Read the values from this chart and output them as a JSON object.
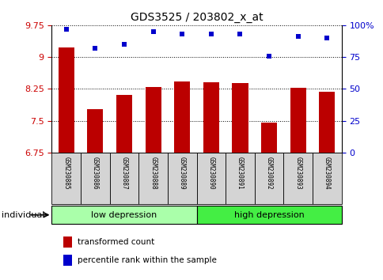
{
  "title": "GDS3525 / 203802_x_at",
  "samples": [
    "GSM230885",
    "GSM230886",
    "GSM230887",
    "GSM230888",
    "GSM230889",
    "GSM230890",
    "GSM230891",
    "GSM230892",
    "GSM230893",
    "GSM230894"
  ],
  "transformed_count": [
    9.22,
    7.78,
    8.1,
    8.3,
    8.42,
    8.4,
    8.38,
    7.46,
    8.27,
    8.18
  ],
  "percentile_rank": [
    97,
    82,
    85,
    95,
    93,
    93,
    93,
    76,
    91,
    90
  ],
  "ylim_left": [
    6.75,
    9.75
  ],
  "ylim_right": [
    0,
    100
  ],
  "yticks_left": [
    6.75,
    7.5,
    8.25,
    9.0,
    9.75
  ],
  "yticks_right": [
    0,
    25,
    50,
    75,
    100
  ],
  "ytick_labels_left": [
    "6.75",
    "7.5",
    "8.25",
    "9",
    "9.75"
  ],
  "ytick_labels_right": [
    "0",
    "25",
    "50",
    "75",
    "100%"
  ],
  "groups": [
    {
      "label": "low depression",
      "start": 0,
      "end": 4,
      "color": "#aaffaa"
    },
    {
      "label": "high depression",
      "start": 5,
      "end": 9,
      "color": "#44ee44"
    }
  ],
  "bar_color": "#bb0000",
  "scatter_color": "#0000cc",
  "tick_label_color_left": "#cc0000",
  "tick_label_color_right": "#0000cc",
  "individual_label": "individual",
  "legend": [
    {
      "label": "transformed count",
      "color": "#bb0000"
    },
    {
      "label": "percentile rank within the sample",
      "color": "#0000cc"
    }
  ],
  "bar_bottom": 6.75,
  "sample_box_color": "#d4d4d4",
  "fig_width": 4.85,
  "fig_height": 3.54,
  "dpi": 100
}
